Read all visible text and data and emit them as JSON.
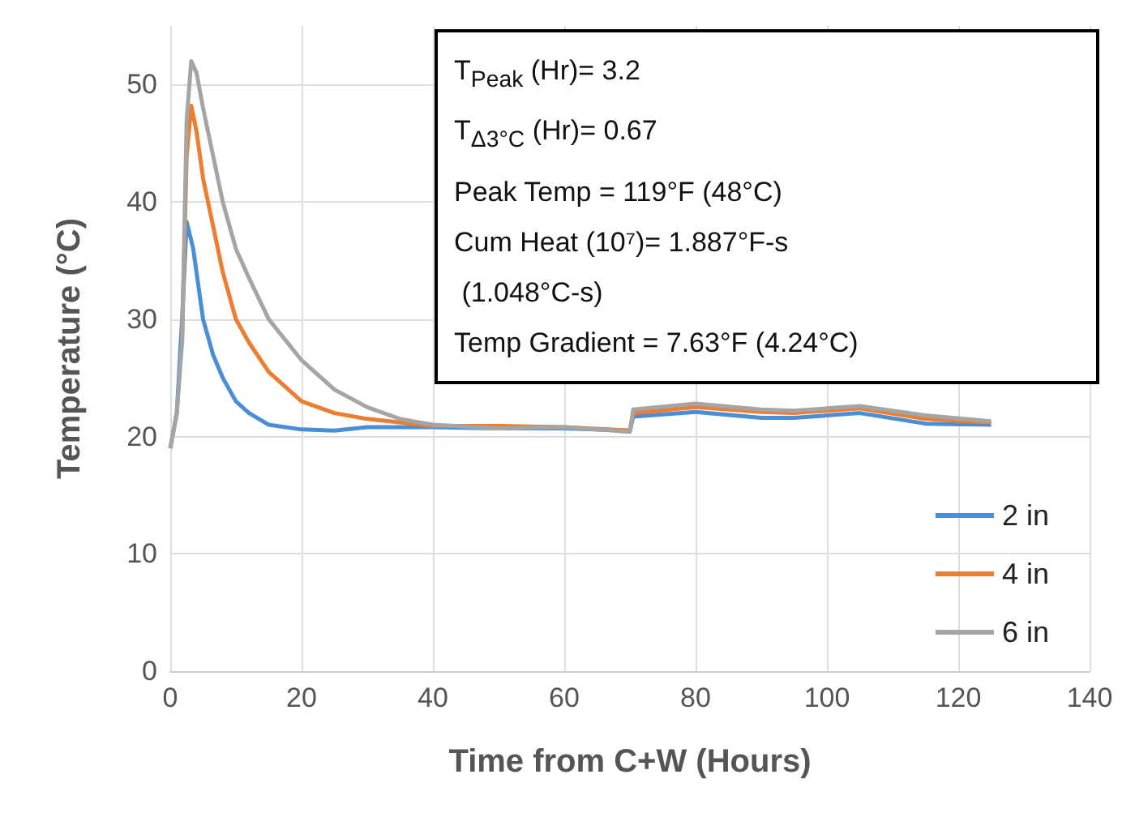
{
  "chart_data": {
    "type": "line",
    "xlabel": "Time from C+W (Hours)",
    "ylabel": "Temperature (°C)",
    "xlim": [
      0,
      140
    ],
    "xticks": [
      0,
      20,
      40,
      60,
      80,
      100,
      120,
      140
    ],
    "ylim": [
      0,
      55
    ],
    "yticks": [
      0,
      10,
      20,
      30,
      40,
      50
    ],
    "grid": true,
    "legend": "bottom right",
    "marker": "none",
    "line_style": "solid",
    "annotations": [
      "T$_{Peak}$ (Hr)= 3.2",
      "T$_{Δ3°C}$ (Hr)= 0.67",
      "Peak Temp = 119°F (48°C)",
      "Cum Heat (10⁷)= 1.887°F-s",
      " (1.048°C-s)",
      "Temp Gradient = 7.63°F (4.24°C)"
    ],
    "series": [
      {
        "name": "2 in",
        "color": "#4a8ed6",
        "x": [
          0,
          1,
          1.8,
          2.5,
          3.5,
          5,
          6.5,
          8,
          10,
          12,
          15,
          20,
          25,
          30,
          40,
          50,
          60,
          70,
          70.5,
          80,
          90,
          95,
          105,
          115,
          125
        ],
        "values": [
          19,
          22,
          30,
          38.3,
          36,
          30,
          27,
          25,
          23,
          22,
          21,
          20.6,
          20.5,
          20.8,
          20.8,
          20.7,
          20.7,
          20.5,
          21.7,
          22.1,
          21.6,
          21.6,
          22,
          21.1,
          21
        ]
      },
      {
        "name": "4 in",
        "color": "#ed7d31",
        "x": [
          1.8,
          2.5,
          3.2,
          4,
          5,
          6.5,
          8,
          10,
          12,
          15,
          20,
          25,
          30,
          40,
          50,
          60,
          70,
          70.5,
          80,
          90,
          95,
          105,
          115,
          125
        ],
        "values": [
          28,
          44,
          48.2,
          46,
          42,
          38,
          34,
          30,
          28,
          25.5,
          23,
          22,
          21.5,
          20.9,
          20.9,
          20.8,
          20.5,
          22,
          22.5,
          22.1,
          22,
          22.4,
          21.5,
          21.2
        ]
      },
      {
        "name": "6 in",
        "color": "#a5a5a5",
        "x": [
          0,
          1,
          1.8,
          2.5,
          3.2,
          4,
          5,
          6.5,
          8,
          10,
          12,
          15,
          20,
          25,
          30,
          35,
          40,
          50,
          60,
          70,
          70.5,
          80,
          90,
          95,
          105,
          115,
          125
        ],
        "values": [
          19,
          22,
          28,
          47,
          52,
          51,
          48,
          44,
          40,
          36,
          33.5,
          30,
          26.5,
          24,
          22.5,
          21.5,
          21,
          20.7,
          20.8,
          20.4,
          22.3,
          22.8,
          22.3,
          22.2,
          22.6,
          21.8,
          21.3
        ]
      }
    ]
  }
}
